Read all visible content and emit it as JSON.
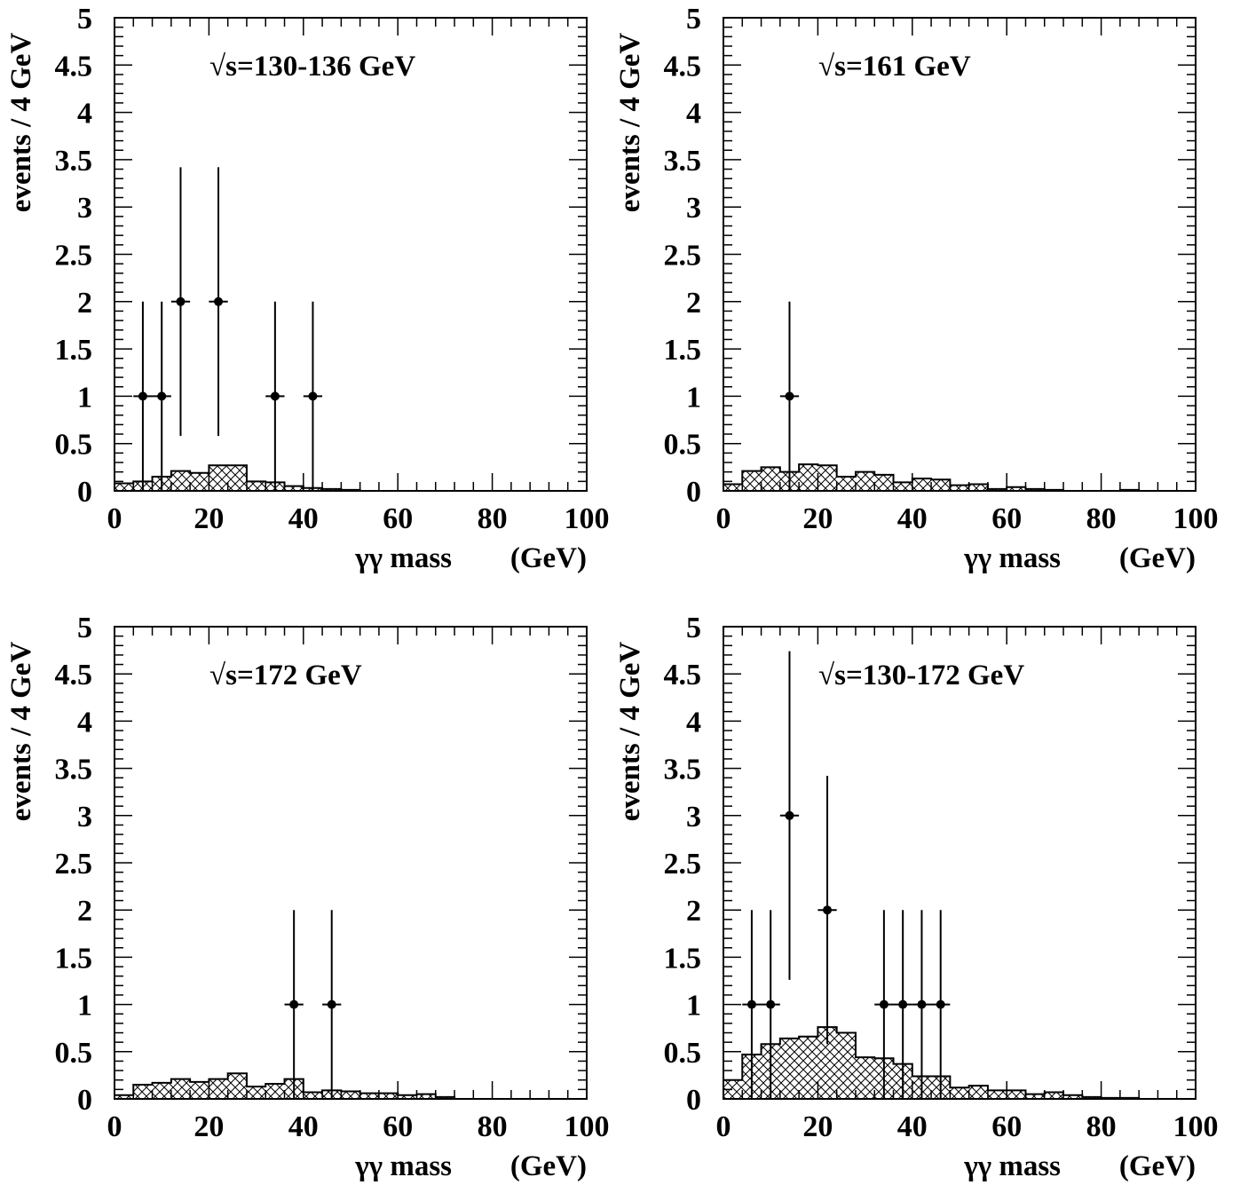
{
  "chart_data": [
    {
      "type": "histogram-with-points",
      "title": "√s=130-136 GeV",
      "xlabel": "γγ mass",
      "xunit": "(GeV)",
      "ylabel": "events / 4 GeV",
      "xlim": [
        0,
        100
      ],
      "ylim": [
        0,
        5
      ],
      "xticks": [
        "0",
        "20",
        "40",
        "60",
        "80",
        "100"
      ],
      "yticks": [
        "0",
        "0.5",
        "1",
        "1.5",
        "2",
        "2.5",
        "3",
        "3.5",
        "4",
        "4.5",
        "5"
      ],
      "bin_width": 4,
      "background": [
        0.08,
        0.1,
        0.15,
        0.21,
        0.19,
        0.27,
        0.27,
        0.1,
        0.09,
        0.05,
        0.03,
        0.02,
        0.01,
        0.0,
        0.0,
        0.0,
        0.0,
        0.0,
        0.0,
        0.0,
        0.0,
        0.0,
        0.0,
        0.0,
        0.0
      ],
      "points": [
        {
          "x": 6,
          "y": 1,
          "yerr_low": 1.0,
          "yerr_high": 1.0
        },
        {
          "x": 10,
          "y": 1,
          "yerr_low": 1.0,
          "yerr_high": 1.0
        },
        {
          "x": 14,
          "y": 2,
          "yerr_low": 1.42,
          "yerr_high": 1.42
        },
        {
          "x": 22,
          "y": 2,
          "yerr_low": 1.42,
          "yerr_high": 1.42
        },
        {
          "x": 34,
          "y": 1,
          "yerr_low": 1.0,
          "yerr_high": 1.0
        },
        {
          "x": 42,
          "y": 1,
          "yerr_low": 1.0,
          "yerr_high": 1.0
        }
      ]
    },
    {
      "type": "histogram-with-points",
      "title": "√s=161 GeV",
      "xlabel": "γγ mass",
      "xunit": "(GeV)",
      "ylabel": "events / 4 GeV",
      "xlim": [
        0,
        100
      ],
      "ylim": [
        0,
        5
      ],
      "xticks": [
        "0",
        "20",
        "40",
        "60",
        "80",
        "100"
      ],
      "yticks": [
        "0",
        "0.5",
        "1",
        "1.5",
        "2",
        "2.5",
        "3",
        "3.5",
        "4",
        "4.5",
        "5"
      ],
      "bin_width": 4,
      "background": [
        0.07,
        0.21,
        0.25,
        0.2,
        0.28,
        0.27,
        0.15,
        0.2,
        0.17,
        0.09,
        0.13,
        0.12,
        0.06,
        0.07,
        0.02,
        0.04,
        0.02,
        0.01,
        0.0,
        0.0,
        0.0,
        0.01,
        0.0,
        0.0,
        0.0
      ],
      "points": [
        {
          "x": 14,
          "y": 1,
          "yerr_low": 1.0,
          "yerr_high": 1.0
        }
      ]
    },
    {
      "type": "histogram-with-points",
      "title": "√s=172 GeV",
      "xlabel": "γγ mass",
      "xunit": "(GeV)",
      "ylabel": "events / 4 GeV",
      "xlim": [
        0,
        100
      ],
      "ylim": [
        0,
        5
      ],
      "xticks": [
        "0",
        "20",
        "40",
        "60",
        "80",
        "100"
      ],
      "yticks": [
        "0",
        "0.5",
        "1",
        "1.5",
        "2",
        "2.5",
        "3",
        "3.5",
        "4",
        "4.5",
        "5"
      ],
      "bin_width": 4,
      "background": [
        0.04,
        0.15,
        0.17,
        0.21,
        0.18,
        0.21,
        0.27,
        0.13,
        0.16,
        0.21,
        0.07,
        0.09,
        0.08,
        0.06,
        0.06,
        0.04,
        0.05,
        0.02,
        0.0,
        0.0,
        0.0,
        0.0,
        0.0,
        0.0,
        0.0
      ],
      "points": [
        {
          "x": 38,
          "y": 1,
          "yerr_low": 1.0,
          "yerr_high": 1.0
        },
        {
          "x": 46,
          "y": 1,
          "yerr_low": 1.0,
          "yerr_high": 1.0
        }
      ]
    },
    {
      "type": "histogram-with-points",
      "title": "√s=130-172 GeV",
      "xlabel": "γγ mass",
      "xunit": "(GeV)",
      "ylabel": "events / 4 GeV",
      "xlim": [
        0,
        100
      ],
      "ylim": [
        0,
        5
      ],
      "xticks": [
        "0",
        "20",
        "40",
        "60",
        "80",
        "100"
      ],
      "yticks": [
        "0",
        "0.5",
        "1",
        "1.5",
        "2",
        "2.5",
        "3",
        "3.5",
        "4",
        "4.5",
        "5"
      ],
      "bin_width": 4,
      "background": [
        0.2,
        0.47,
        0.58,
        0.64,
        0.66,
        0.76,
        0.7,
        0.44,
        0.43,
        0.37,
        0.24,
        0.24,
        0.12,
        0.14,
        0.09,
        0.09,
        0.05,
        0.07,
        0.04,
        0.02,
        0.01,
        0.01,
        0.0,
        0.0,
        0.0
      ],
      "points": [
        {
          "x": 6,
          "y": 1,
          "yerr_low": 1.0,
          "yerr_high": 1.0
        },
        {
          "x": 10,
          "y": 1,
          "yerr_low": 1.0,
          "yerr_high": 1.0
        },
        {
          "x": 14,
          "y": 3,
          "yerr_low": 1.74,
          "yerr_high": 1.74
        },
        {
          "x": 22,
          "y": 2,
          "yerr_low": 1.42,
          "yerr_high": 1.42
        },
        {
          "x": 34,
          "y": 1,
          "yerr_low": 1.0,
          "yerr_high": 1.0
        },
        {
          "x": 38,
          "y": 1,
          "yerr_low": 1.0,
          "yerr_high": 1.0
        },
        {
          "x": 42,
          "y": 1,
          "yerr_low": 1.0,
          "yerr_high": 1.0
        },
        {
          "x": 46,
          "y": 1,
          "yerr_low": 1.0,
          "yerr_high": 1.0
        }
      ]
    }
  ]
}
